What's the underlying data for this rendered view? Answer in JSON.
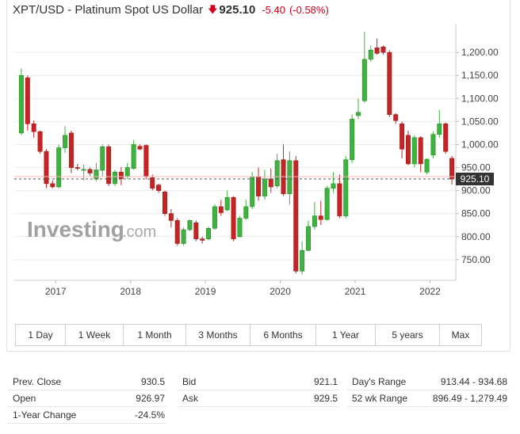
{
  "header": {
    "title": "XPT/USD - Platinum Spot US Dollar",
    "arrow_icon": "down-arrow-icon",
    "price": "925.10",
    "change": "-5.40",
    "change_pct": "(-0.58%)",
    "change_color": "#d0021b"
  },
  "watermark": {
    "brand": "Investing",
    "suffix": ".com"
  },
  "range_buttons": [
    "1 Day",
    "1 Week",
    "1 Month",
    "3 Months",
    "6 Months",
    "1 Year",
    "5 years",
    "Max"
  ],
  "stats": {
    "col1": [
      {
        "label": "Prev. Close",
        "value": "930.5"
      },
      {
        "label": "Open",
        "value": "926.97"
      },
      {
        "label": "1-Year Change",
        "value": "-24.5%"
      }
    ],
    "col2": [
      {
        "label": "Bid",
        "value": "921.1"
      },
      {
        "label": "Ask",
        "value": "929.5"
      }
    ],
    "col3": [
      {
        "label": "Day's Range",
        "value": "913.44 - 934.68"
      },
      {
        "label": "52 wk Range",
        "value": "896.49 - 1,279.49"
      }
    ]
  },
  "chart_data": {
    "type": "candlestick",
    "interval": "monthly",
    "x_ticks": [
      "2017",
      "2018",
      "2019",
      "2020",
      "2021",
      "2022"
    ],
    "y_ticks": [
      "750.00",
      "800.00",
      "850.00",
      "900.00",
      "950.00",
      "1,000.00",
      "1,050.00",
      "1,100.00",
      "1,150.00",
      "1,200.00"
    ],
    "ylim": [
      705,
      1245
    ],
    "current_price_label": "925.10",
    "current_price": 925.1,
    "up_color": "#3fb23f",
    "down_color": "#c62424",
    "candles": [
      {
        "o": 1025,
        "h": 1165,
        "l": 1020,
        "c": 1150
      },
      {
        "o": 1145,
        "h": 1150,
        "l": 1030,
        "c": 1045
      },
      {
        "o": 1045,
        "h": 1052,
        "l": 1015,
        "c": 1028
      },
      {
        "o": 1028,
        "h": 1030,
        "l": 980,
        "c": 985
      },
      {
        "o": 985,
        "h": 990,
        "l": 905,
        "c": 915
      },
      {
        "o": 915,
        "h": 922,
        "l": 905,
        "c": 908
      },
      {
        "o": 908,
        "h": 1000,
        "l": 905,
        "c": 993
      },
      {
        "o": 993,
        "h": 1040,
        "l": 982,
        "c": 1020
      },
      {
        "o": 1025,
        "h": 1030,
        "l": 938,
        "c": 950
      },
      {
        "o": 950,
        "h": 958,
        "l": 944,
        "c": 948
      },
      {
        "o": 944,
        "h": 957,
        "l": 922,
        "c": 946
      },
      {
        "o": 946,
        "h": 950,
        "l": 932,
        "c": 938
      },
      {
        "o": 925,
        "h": 960,
        "l": 920,
        "c": 945
      },
      {
        "o": 944,
        "h": 1000,
        "l": 932,
        "c": 995
      },
      {
        "o": 995,
        "h": 1000,
        "l": 910,
        "c": 915
      },
      {
        "o": 915,
        "h": 945,
        "l": 910,
        "c": 940
      },
      {
        "o": 940,
        "h": 951,
        "l": 912,
        "c": 926
      },
      {
        "o": 930,
        "h": 960,
        "l": 925,
        "c": 950
      },
      {
        "o": 948,
        "h": 1010,
        "l": 945,
        "c": 1000
      },
      {
        "o": 996,
        "h": 1000,
        "l": 988,
        "c": 990
      },
      {
        "o": 998,
        "h": 1000,
        "l": 925,
        "c": 930
      },
      {
        "o": 928,
        "h": 935,
        "l": 900,
        "c": 905
      },
      {
        "o": 912,
        "h": 915,
        "l": 895,
        "c": 900
      },
      {
        "o": 897,
        "h": 900,
        "l": 845,
        "c": 850
      },
      {
        "o": 850,
        "h": 860,
        "l": 820,
        "c": 835
      },
      {
        "o": 835,
        "h": 840,
        "l": 780,
        "c": 785
      },
      {
        "o": 785,
        "h": 820,
        "l": 780,
        "c": 815
      },
      {
        "o": 815,
        "h": 837,
        "l": 812,
        "c": 835
      },
      {
        "o": 830,
        "h": 835,
        "l": 790,
        "c": 795
      },
      {
        "o": 795,
        "h": 800,
        "l": 785,
        "c": 792
      },
      {
        "o": 795,
        "h": 822,
        "l": 792,
        "c": 818
      },
      {
        "o": 818,
        "h": 870,
        "l": 815,
        "c": 865
      },
      {
        "o": 865,
        "h": 880,
        "l": 845,
        "c": 852
      },
      {
        "o": 858,
        "h": 900,
        "l": 855,
        "c": 885
      },
      {
        "o": 885,
        "h": 888,
        "l": 790,
        "c": 795
      },
      {
        "o": 800,
        "h": 845,
        "l": 798,
        "c": 840
      },
      {
        "o": 840,
        "h": 880,
        "l": 836,
        "c": 865
      },
      {
        "o": 865,
        "h": 940,
        "l": 860,
        "c": 930
      },
      {
        "o": 930,
        "h": 950,
        "l": 878,
        "c": 888
      },
      {
        "o": 888,
        "h": 945,
        "l": 880,
        "c": 925
      },
      {
        "o": 925,
        "h": 948,
        "l": 895,
        "c": 908
      },
      {
        "o": 910,
        "h": 980,
        "l": 905,
        "c": 965
      },
      {
        "o": 967,
        "h": 1000,
        "l": 888,
        "c": 893
      },
      {
        "o": 893,
        "h": 985,
        "l": 870,
        "c": 965
      },
      {
        "o": 965,
        "h": 975,
        "l": 720,
        "c": 725
      },
      {
        "o": 725,
        "h": 790,
        "l": 718,
        "c": 770
      },
      {
        "o": 770,
        "h": 835,
        "l": 768,
        "c": 822
      },
      {
        "o": 822,
        "h": 875,
        "l": 815,
        "c": 845
      },
      {
        "o": 845,
        "h": 878,
        "l": 825,
        "c": 837
      },
      {
        "o": 837,
        "h": 910,
        "l": 835,
        "c": 905
      },
      {
        "o": 905,
        "h": 940,
        "l": 895,
        "c": 915
      },
      {
        "o": 915,
        "h": 935,
        "l": 840,
        "c": 845
      },
      {
        "o": 845,
        "h": 975,
        "l": 840,
        "c": 967
      },
      {
        "o": 967,
        "h": 1065,
        "l": 960,
        "c": 1055
      },
      {
        "o": 1063,
        "h": 1100,
        "l": 1055,
        "c": 1070
      },
      {
        "o": 1095,
        "h": 1245,
        "l": 1090,
        "c": 1185
      },
      {
        "o": 1185,
        "h": 1215,
        "l": 1180,
        "c": 1205
      },
      {
        "o": 1210,
        "h": 1230,
        "l": 1195,
        "c": 1198
      },
      {
        "o": 1212,
        "h": 1215,
        "l": 1195,
        "c": 1200
      },
      {
        "o": 1200,
        "h": 1205,
        "l": 1060,
        "c": 1065
      },
      {
        "o": 1065,
        "h": 1068,
        "l": 1045,
        "c": 1052
      },
      {
        "o": 1045,
        "h": 1050,
        "l": 970,
        "c": 990
      },
      {
        "o": 1020,
        "h": 1030,
        "l": 955,
        "c": 958
      },
      {
        "o": 958,
        "h": 1020,
        "l": 950,
        "c": 1015
      },
      {
        "o": 1015,
        "h": 1018,
        "l": 940,
        "c": 958
      },
      {
        "o": 940,
        "h": 970,
        "l": 935,
        "c": 968
      },
      {
        "o": 977,
        "h": 1028,
        "l": 970,
        "c": 1022
      },
      {
        "o": 1022,
        "h": 1075,
        "l": 1015,
        "c": 1045
      },
      {
        "o": 1045,
        "h": 1048,
        "l": 980,
        "c": 985
      },
      {
        "o": 970,
        "h": 975,
        "l": 913,
        "c": 925
      }
    ]
  }
}
